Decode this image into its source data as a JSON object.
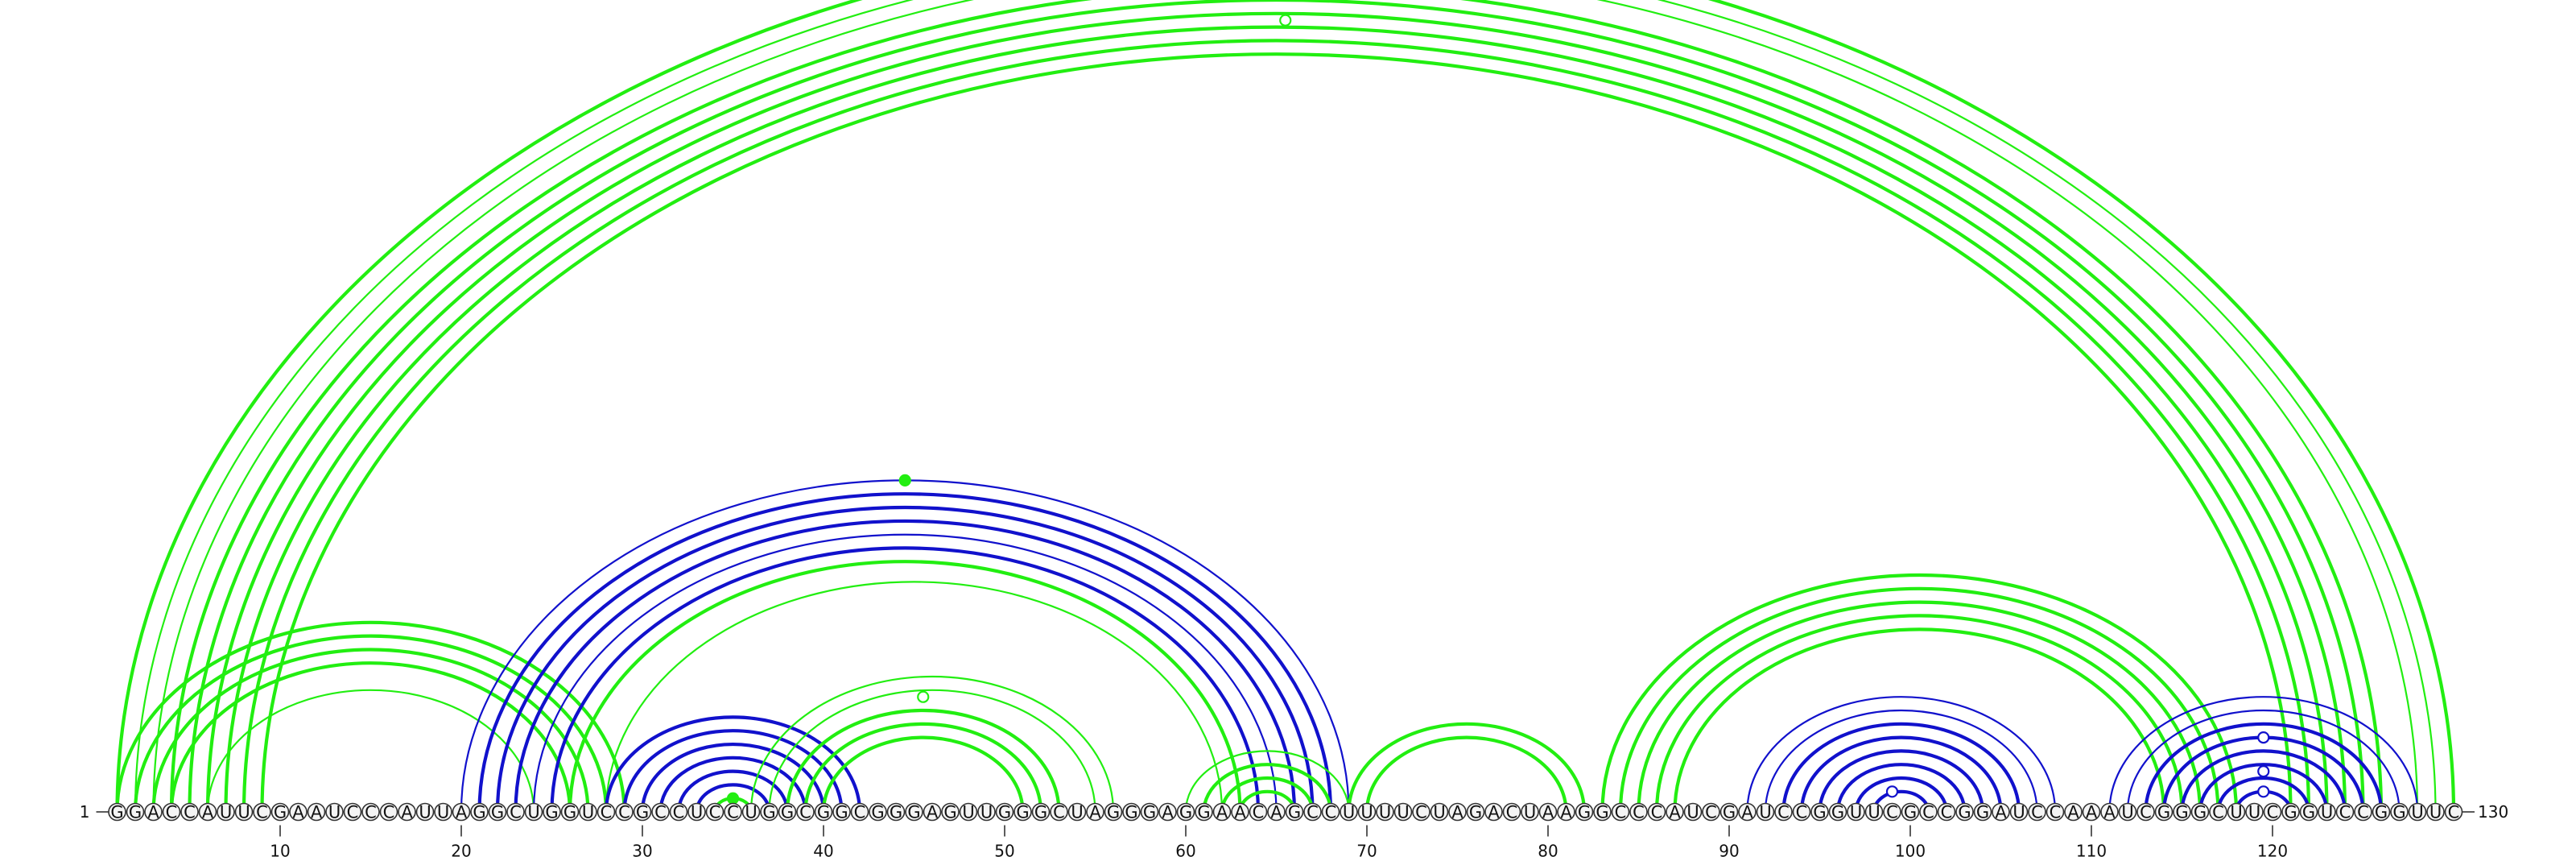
{
  "sequence": "GGACCAUUCGAAUCCCAUUAGGCUGGUCCGCCUCCUGGCGGCGGGAGUUGGGCUAGGGAGGAACAGCCUUUUCUAGACUAAGGCCCAUCGAUCCGGUUCGCCGGAUCCAAAUCGGGCUUCGGUCCGGUUC",
  "start_label": "1",
  "end_label": "130",
  "ticks": [
    {
      "pos": 10,
      "label": "10"
    },
    {
      "pos": 20,
      "label": "20"
    },
    {
      "pos": 30,
      "label": "30"
    },
    {
      "pos": 40,
      "label": "40"
    },
    {
      "pos": 50,
      "label": "50"
    },
    {
      "pos": 60,
      "label": "60"
    },
    {
      "pos": 70,
      "label": "70"
    },
    {
      "pos": 80,
      "label": "80"
    },
    {
      "pos": 90,
      "label": "90"
    },
    {
      "pos": 100,
      "label": "100"
    },
    {
      "pos": 110,
      "label": "110"
    },
    {
      "pos": 120,
      "label": "120"
    }
  ],
  "colors": {
    "green": "#22ee11",
    "blue": "#1111cc"
  },
  "arcs": [
    {
      "i": 1,
      "j": 130,
      "color": "green",
      "weight": 2
    },
    {
      "i": 2,
      "j": 129,
      "color": "green",
      "weight": 1
    },
    {
      "i": 3,
      "j": 128,
      "color": "green",
      "weight": 1
    },
    {
      "i": 4,
      "j": 126,
      "color": "green",
      "weight": 2
    },
    {
      "i": 5,
      "j": 125,
      "color": "green",
      "weight": 2
    },
    {
      "i": 6,
      "j": 124,
      "color": "green",
      "weight": 2
    },
    {
      "i": 7,
      "j": 123,
      "color": "green",
      "weight": 2
    },
    {
      "i": 8,
      "j": 122,
      "color": "green",
      "weight": 2
    },
    {
      "i": 9,
      "j": 121,
      "color": "green",
      "weight": 2
    },
    {
      "i": 1,
      "j": 29,
      "color": "green",
      "weight": 2
    },
    {
      "i": 2,
      "j": 28,
      "color": "green",
      "weight": 2
    },
    {
      "i": 3,
      "j": 27,
      "color": "green",
      "weight": 2
    },
    {
      "i": 4,
      "j": 26,
      "color": "green",
      "weight": 2
    },
    {
      "i": 6,
      "j": 24,
      "color": "green",
      "weight": 1
    },
    {
      "i": 20,
      "j": 69,
      "color": "blue",
      "weight": 1
    },
    {
      "i": 21,
      "j": 68,
      "color": "blue",
      "weight": 2
    },
    {
      "i": 22,
      "j": 67,
      "color": "blue",
      "weight": 2
    },
    {
      "i": 23,
      "j": 66,
      "color": "blue",
      "weight": 2
    },
    {
      "i": 24,
      "j": 65,
      "color": "blue",
      "weight": 1
    },
    {
      "i": 25,
      "j": 64,
      "color": "blue",
      "weight": 2
    },
    {
      "i": 26,
      "j": 63,
      "color": "green",
      "weight": 2
    },
    {
      "i": 28,
      "j": 62,
      "color": "green",
      "weight": 1
    },
    {
      "i": 28,
      "j": 42,
      "color": "blue",
      "weight": 2
    },
    {
      "i": 29,
      "j": 41,
      "color": "blue",
      "weight": 2
    },
    {
      "i": 30,
      "j": 40,
      "color": "blue",
      "weight": 2
    },
    {
      "i": 31,
      "j": 39,
      "color": "blue",
      "weight": 2
    },
    {
      "i": 32,
      "j": 38,
      "color": "blue",
      "weight": 2
    },
    {
      "i": 33,
      "j": 37,
      "color": "blue",
      "weight": 2
    },
    {
      "i": 34,
      "j": 36,
      "color": "green",
      "weight": 2
    },
    {
      "i": 36,
      "j": 56,
      "color": "green",
      "weight": 1
    },
    {
      "i": 37,
      "j": 55,
      "color": "green",
      "weight": 1
    },
    {
      "i": 38,
      "j": 53,
      "color": "green",
      "weight": 2
    },
    {
      "i": 39,
      "j": 52,
      "color": "green",
      "weight": 2
    },
    {
      "i": 40,
      "j": 51,
      "color": "green",
      "weight": 2
    },
    {
      "i": 60,
      "j": 69,
      "color": "green",
      "weight": 1
    },
    {
      "i": 61,
      "j": 68,
      "color": "green",
      "weight": 2
    },
    {
      "i": 62,
      "j": 67,
      "color": "green",
      "weight": 2
    },
    {
      "i": 63,
      "j": 66,
      "color": "green",
      "weight": 2
    },
    {
      "i": 69,
      "j": 82,
      "color": "green",
      "weight": 2
    },
    {
      "i": 70,
      "j": 81,
      "color": "green",
      "weight": 2
    },
    {
      "i": 83,
      "j": 118,
      "color": "green",
      "weight": 2
    },
    {
      "i": 84,
      "j": 117,
      "color": "green",
      "weight": 2
    },
    {
      "i": 85,
      "j": 116,
      "color": "green",
      "weight": 2
    },
    {
      "i": 86,
      "j": 115,
      "color": "green",
      "weight": 2
    },
    {
      "i": 87,
      "j": 114,
      "color": "green",
      "weight": 2
    },
    {
      "i": 91,
      "j": 108,
      "color": "blue",
      "weight": 1
    },
    {
      "i": 92,
      "j": 107,
      "color": "blue",
      "weight": 1
    },
    {
      "i": 93,
      "j": 106,
      "color": "blue",
      "weight": 2
    },
    {
      "i": 94,
      "j": 105,
      "color": "blue",
      "weight": 2
    },
    {
      "i": 95,
      "j": 104,
      "color": "blue",
      "weight": 2
    },
    {
      "i": 96,
      "j": 103,
      "color": "blue",
      "weight": 2
    },
    {
      "i": 97,
      "j": 102,
      "color": "blue",
      "weight": 2
    },
    {
      "i": 98,
      "j": 101,
      "color": "blue",
      "weight": 2
    },
    {
      "i": 111,
      "j": 128,
      "color": "blue",
      "weight": 1
    },
    {
      "i": 112,
      "j": 127,
      "color": "blue",
      "weight": 1
    },
    {
      "i": 113,
      "j": 126,
      "color": "blue",
      "weight": 2
    },
    {
      "i": 114,
      "j": 125,
      "color": "blue",
      "weight": 2
    },
    {
      "i": 115,
      "j": 124,
      "color": "blue",
      "weight": 2
    },
    {
      "i": 116,
      "j": 123,
      "color": "blue",
      "weight": 2
    },
    {
      "i": 117,
      "j": 122,
      "color": "blue",
      "weight": 2
    },
    {
      "i": 118,
      "j": 121,
      "color": "blue",
      "weight": 2
    }
  ],
  "apex_markers": [
    {
      "pos": 65.5,
      "height": 58.5,
      "color": "green",
      "filled": false
    },
    {
      "pos": 44.5,
      "height": 24.5,
      "color": "green",
      "filled": true
    },
    {
      "pos": 45.5,
      "height": 8.5,
      "color": "green",
      "filled": false
    },
    {
      "pos": 35.0,
      "height": 1.0,
      "color": "green",
      "filled": true
    },
    {
      "pos": 99.0,
      "height": 1.5,
      "color": "blue",
      "filled": false
    },
    {
      "pos": 119.5,
      "height": 1.5,
      "color": "blue",
      "filled": false
    },
    {
      "pos": 119.5,
      "height": 3.0,
      "color": "blue",
      "filled": false
    },
    {
      "pos": 119.5,
      "height": 5.5,
      "color": "blue",
      "filled": false
    }
  ]
}
